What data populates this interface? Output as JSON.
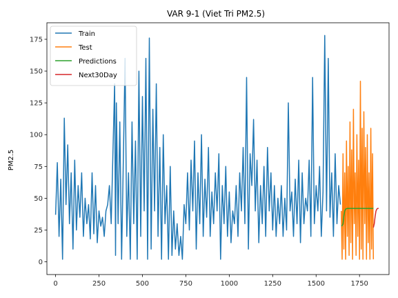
{
  "chart_data": {
    "type": "line",
    "title": "VAR 9-1 (Viet Tri PM2.5)",
    "xlabel": "",
    "ylabel": "PM2.5",
    "xlim": [
      -50,
      1920
    ],
    "ylim": [
      -10,
      188
    ],
    "xticks": [
      0,
      250,
      500,
      750,
      1000,
      1250,
      1500,
      1750
    ],
    "yticks": [
      0,
      25,
      50,
      75,
      100,
      125,
      150,
      175
    ],
    "grid": false,
    "legend_position": "top-left",
    "series": [
      {
        "name": "Train",
        "color": "#1f77b4",
        "x": [
          0,
          10,
          20,
          30,
          40,
          50,
          60,
          70,
          80,
          90,
          100,
          110,
          120,
          130,
          140,
          150,
          160,
          170,
          180,
          190,
          200,
          210,
          220,
          230,
          240,
          250,
          260,
          270,
          280,
          290,
          300,
          310,
          320,
          330,
          340,
          345,
          350,
          360,
          370,
          380,
          390,
          400,
          410,
          420,
          430,
          440,
          450,
          460,
          470,
          480,
          490,
          500,
          510,
          520,
          530,
          540,
          550,
          560,
          570,
          580,
          590,
          600,
          610,
          620,
          630,
          640,
          650,
          660,
          670,
          680,
          690,
          700,
          710,
          720,
          730,
          740,
          750,
          760,
          770,
          780,
          790,
          800,
          810,
          820,
          830,
          840,
          850,
          860,
          870,
          880,
          890,
          900,
          910,
          920,
          930,
          940,
          950,
          960,
          970,
          980,
          990,
          1000,
          1010,
          1020,
          1030,
          1040,
          1050,
          1060,
          1070,
          1080,
          1090,
          1100,
          1110,
          1120,
          1130,
          1140,
          1150,
          1160,
          1170,
          1180,
          1190,
          1200,
          1210,
          1220,
          1230,
          1240,
          1250,
          1260,
          1270,
          1280,
          1290,
          1300,
          1310,
          1320,
          1330,
          1340,
          1350,
          1360,
          1370,
          1380,
          1390,
          1400,
          1410,
          1420,
          1430,
          1440,
          1450,
          1460,
          1470,
          1480,
          1490,
          1500,
          1510,
          1520,
          1530,
          1540,
          1550,
          1560,
          1570,
          1580,
          1590,
          1600,
          1610,
          1620,
          1630,
          1640
        ],
        "y": [
          37,
          78,
          20,
          65,
          2,
          113,
          45,
          92,
          30,
          70,
          10,
          80,
          25,
          60,
          35,
          70,
          20,
          50,
          30,
          45,
          18,
          70,
          22,
          60,
          15,
          40,
          28,
          35,
          20,
          40,
          45,
          60,
          30,
          85,
          140,
          5,
          125,
          30,
          110,
          2,
          80,
          160,
          20,
          70,
          2,
          110,
          30,
          95,
          2,
          150,
          20,
          130,
          40,
          160,
          2,
          176,
          10,
          120,
          40,
          140,
          20,
          90,
          2,
          100,
          30,
          60,
          2,
          75,
          5,
          40,
          10,
          30,
          5,
          20,
          2,
          45,
          30,
          70,
          25,
          80,
          40,
          95,
          10,
          70,
          30,
          100,
          20,
          65,
          35,
          90,
          20,
          55,
          30,
          70,
          40,
          85,
          2,
          60,
          30,
          75,
          20,
          55,
          15,
          40,
          30,
          60,
          20,
          70,
          40,
          90,
          30,
          145,
          10,
          85,
          60,
          112,
          40,
          80,
          15,
          60,
          30,
          75,
          20,
          90,
          40,
          70,
          25,
          60,
          20,
          50,
          30,
          60,
          20,
          50,
          25,
          125,
          40,
          55,
          20,
          65,
          30,
          80,
          15,
          70,
          30,
          50,
          40,
          80,
          20,
          145,
          30,
          60,
          40,
          75,
          20,
          55,
          178,
          40,
          160,
          35,
          70,
          20,
          85,
          30,
          60,
          45
        ]
      },
      {
        "name": "Test",
        "color": "#ff7f0e",
        "x": [
          1645,
          1650,
          1655,
          1660,
          1665,
          1670,
          1675,
          1680,
          1685,
          1690,
          1695,
          1700,
          1705,
          1710,
          1715,
          1720,
          1725,
          1730,
          1735,
          1740,
          1745,
          1750,
          1755,
          1760,
          1765,
          1770,
          1775,
          1780,
          1785,
          1790,
          1795,
          1800,
          1805,
          1810,
          1815,
          1820,
          1825,
          1830
        ],
        "y": [
          40,
          2,
          85,
          10,
          70,
          2,
          95,
          20,
          75,
          5,
          110,
          15,
          88,
          2,
          120,
          30,
          70,
          5,
          100,
          20,
          80,
          2,
          142,
          10,
          105,
          2,
          118,
          30,
          90,
          2,
          100,
          15,
          70,
          2,
          105,
          10,
          85,
          2
        ]
      },
      {
        "name": "Predictions",
        "color": "#2ca02c",
        "x": [
          1648,
          1655,
          1660,
          1665,
          1670,
          1680,
          1700,
          1750,
          1800,
          1830
        ],
        "y": [
          28,
          30,
          36,
          40,
          41.5,
          42,
          42,
          42,
          42,
          42
        ]
      },
      {
        "name": "Next30Day",
        "color": "#d62728",
        "x": [
          1830,
          1835,
          1840,
          1845,
          1850,
          1855,
          1860
        ],
        "y": [
          27,
          30,
          36,
          40,
          41.5,
          42,
          42
        ]
      }
    ]
  }
}
